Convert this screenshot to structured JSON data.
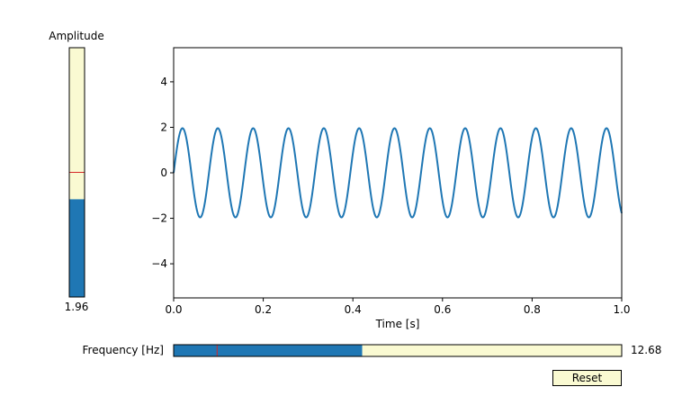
{
  "amplitude_slider": {
    "label": "Amplitude",
    "value_text": "1.96",
    "value": 1.96,
    "min": 0,
    "max": 5,
    "init": 2.5,
    "fill_color": "#1f77b4",
    "track_color": "#fafad2",
    "init_marker_color": "#d62728"
  },
  "frequency_slider": {
    "label": "Frequency [Hz]",
    "value_text": "12.68",
    "value": 12.68,
    "min": 0.1,
    "max": 30,
    "init": 3,
    "fill_color": "#1f77b4",
    "track_color": "#fafad2",
    "init_marker_color": "#d62728"
  },
  "reset_button": {
    "label": "Reset",
    "color": "#fafad2"
  },
  "chart_data": {
    "type": "line",
    "title": "",
    "xlabel": "Time [s]",
    "ylabel": "",
    "xlim": [
      0,
      1
    ],
    "ylim": [
      -5.5,
      5.5
    ],
    "x_ticks": [
      "0.0",
      "0.2",
      "0.4",
      "0.6",
      "0.8",
      "1.0"
    ],
    "y_ticks": [
      "−4",
      "−2",
      "0",
      "2",
      "4"
    ],
    "grid": false,
    "series": [
      {
        "function": "amplitude * sin(2 * pi * frequency * t)",
        "amplitude": 1.96,
        "frequency": 12.68,
        "color": "#1f77b4"
      }
    ]
  }
}
